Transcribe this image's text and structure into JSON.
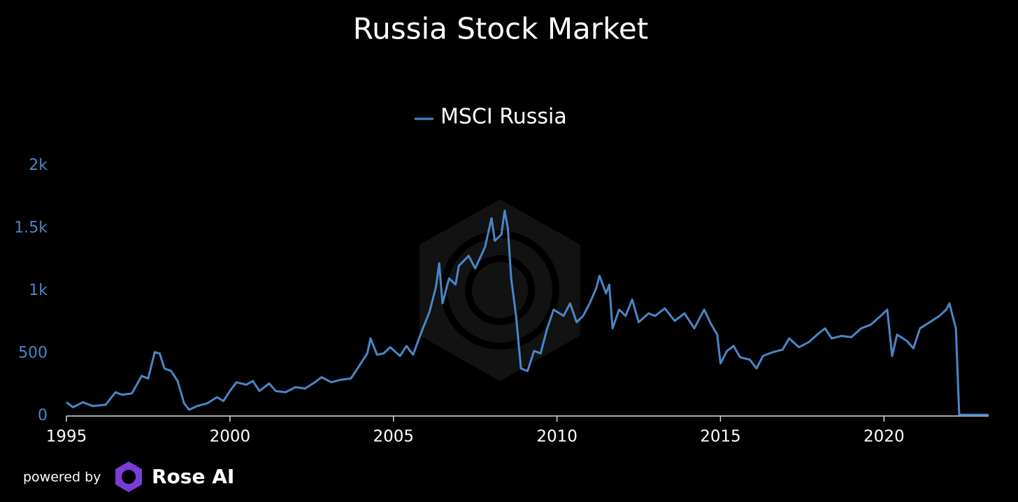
{
  "chart_data": {
    "type": "line",
    "title": "Russia Stock Market",
    "x": [
      1995.0,
      1995.2,
      1995.5,
      1995.8,
      1996.2,
      1996.5,
      1996.7,
      1997.0,
      1997.3,
      1997.5,
      1997.7,
      1997.85,
      1998.0,
      1998.2,
      1998.4,
      1998.6,
      1998.75,
      1999.0,
      1999.3,
      1999.6,
      1999.8,
      2000.0,
      2000.2,
      2000.5,
      2000.7,
      2000.9,
      2001.2,
      2001.4,
      2001.7,
      2002.0,
      2002.3,
      2002.6,
      2002.8,
      2003.1,
      2003.4,
      2003.7,
      2004.0,
      2004.2,
      2004.3,
      2004.5,
      2004.7,
      2004.9,
      2005.2,
      2005.4,
      2005.6,
      2005.9,
      2006.1,
      2006.3,
      2006.4,
      2006.5,
      2006.7,
      2006.9,
      2007.0,
      2007.3,
      2007.5,
      2007.8,
      2008.0,
      2008.1,
      2008.3,
      2008.4,
      2008.5,
      2008.6,
      2008.75,
      2008.9,
      2009.1,
      2009.3,
      2009.5,
      2009.7,
      2009.9,
      2010.2,
      2010.4,
      2010.6,
      2010.8,
      2011.0,
      2011.2,
      2011.3,
      2011.5,
      2011.6,
      2011.7,
      2011.9,
      2012.1,
      2012.3,
      2012.5,
      2012.8,
      2013.0,
      2013.3,
      2013.6,
      2013.9,
      2014.2,
      2014.5,
      2014.7,
      2014.9,
      2015.0,
      2015.2,
      2015.4,
      2015.6,
      2015.9,
      2016.1,
      2016.3,
      2016.6,
      2016.9,
      2017.1,
      2017.4,
      2017.7,
      2018.0,
      2018.2,
      2018.4,
      2018.7,
      2019.0,
      2019.3,
      2019.6,
      2019.9,
      2020.1,
      2020.2,
      2020.25,
      2020.4,
      2020.7,
      2020.9,
      2021.1,
      2021.4,
      2021.7,
      2021.9,
      2022.0,
      2022.1,
      2022.2,
      2022.3,
      2023.2
    ],
    "series": [
      {
        "name": "MSCI Russia",
        "color": "#4a86c8",
        "values": [
          110,
          70,
          110,
          80,
          90,
          190,
          170,
          180,
          320,
          300,
          510,
          500,
          380,
          360,
          280,
          100,
          50,
          80,
          100,
          150,
          120,
          200,
          270,
          250,
          280,
          200,
          260,
          200,
          190,
          230,
          220,
          270,
          310,
          270,
          290,
          300,
          420,
          500,
          620,
          490,
          500,
          550,
          480,
          560,
          490,
          700,
          830,
          1030,
          1220,
          900,
          1100,
          1050,
          1200,
          1280,
          1180,
          1350,
          1580,
          1400,
          1450,
          1640,
          1500,
          1100,
          800,
          380,
          360,
          520,
          500,
          700,
          850,
          800,
          900,
          750,
          800,
          900,
          1020,
          1120,
          980,
          1050,
          700,
          850,
          800,
          930,
          750,
          820,
          800,
          860,
          760,
          820,
          700,
          850,
          740,
          650,
          420,
          520,
          560,
          470,
          450,
          380,
          480,
          510,
          530,
          620,
          550,
          590,
          660,
          700,
          620,
          640,
          630,
          700,
          730,
          800,
          850,
          600,
          480,
          650,
          600,
          540,
          700,
          750,
          800,
          850,
          900,
          800,
          700,
          10,
          10
        ]
      }
    ],
    "xlim": [
      1995,
      2023.2
    ],
    "xticks": [
      1995,
      2000,
      2005,
      2010,
      2015,
      2020
    ],
    "ylim": [
      0,
      2000
    ],
    "yticks": [
      0,
      500,
      {
        "value": 1000,
        "label": "1k"
      },
      {
        "value": 1500,
        "label": "1.5k"
      },
      {
        "value": 2000,
        "label": "2k"
      }
    ],
    "legend": "top"
  },
  "footer": {
    "powered_by": "powered by",
    "brand": "Rose AI"
  }
}
